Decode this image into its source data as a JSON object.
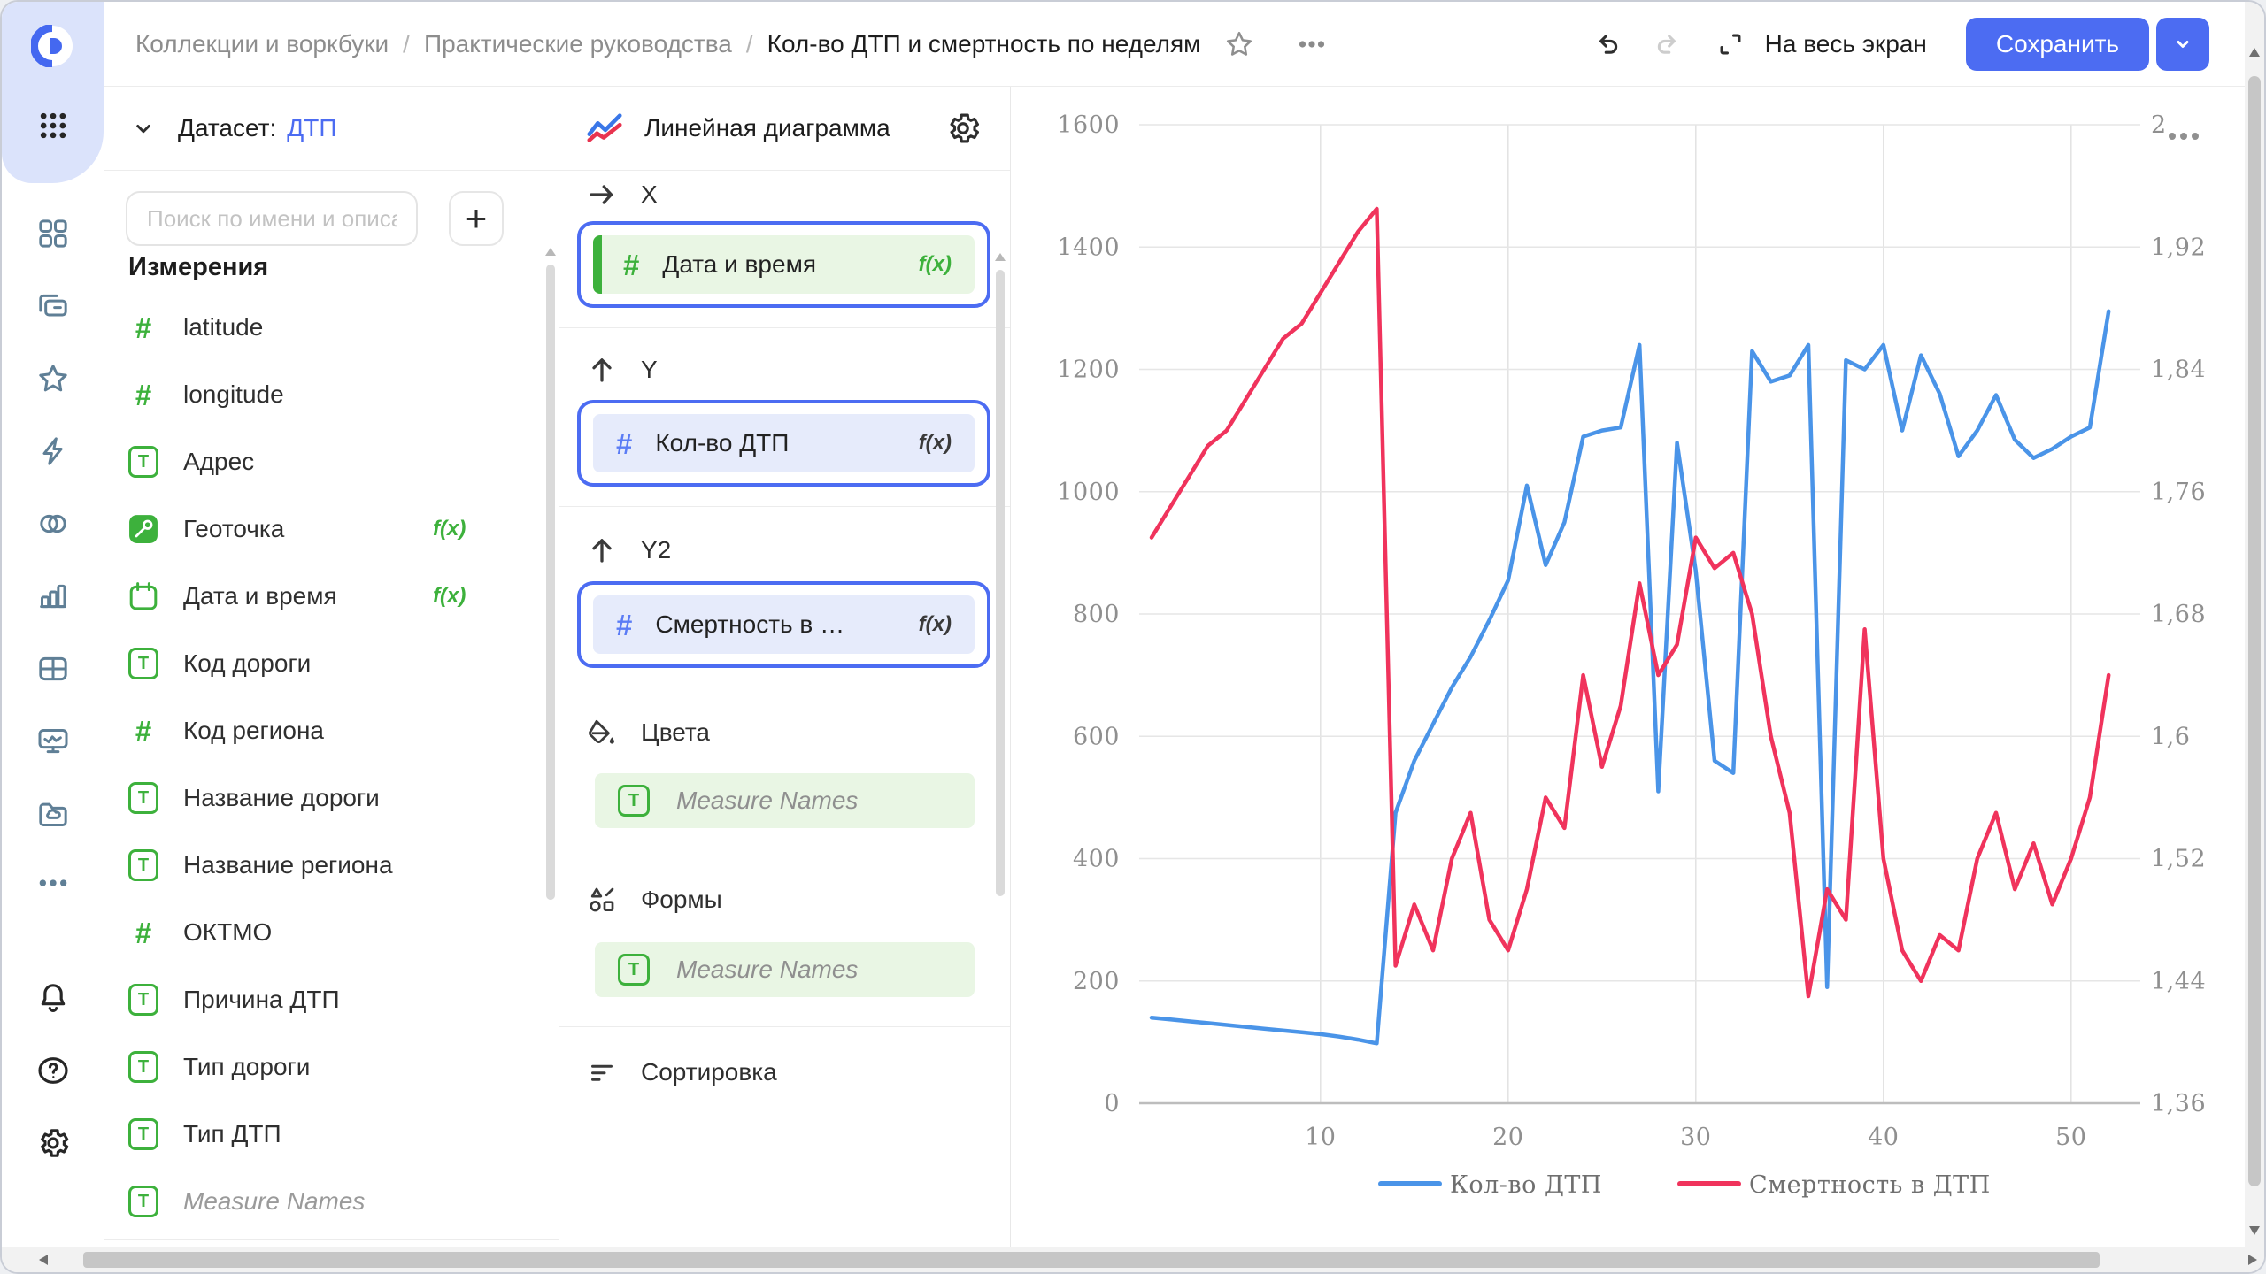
{
  "labels": {
    "fx": "f(x)",
    "plus": "+"
  },
  "colors": {
    "accent": "#4c6cf2",
    "green": "#3db13c",
    "light_green_chip": "#e9f6e4",
    "lavender_chip": "#e6ebfb",
    "rail_icon": "#5f7f96",
    "series_blue": "#4a94e8",
    "series_red": "#f0335c"
  },
  "topbar": {
    "breadcrumbs": [
      {
        "label": "Коллекции и воркбуки"
      },
      {
        "label": "Практические руководства"
      },
      {
        "label": "Кол-во ДТП и смертность по неделям",
        "current": true
      }
    ],
    "fullscreen_label": "На весь экран",
    "save_label": "Сохранить"
  },
  "dataset_panel": {
    "header_label": "Датасет:",
    "dataset_name": "ДТП",
    "search_placeholder": "Поиск по имени и описанию",
    "section_title": "Измерения",
    "fields": [
      {
        "type": "number",
        "label": "latitude"
      },
      {
        "type": "number",
        "label": "longitude"
      },
      {
        "type": "text",
        "label": "Адрес"
      },
      {
        "type": "geo",
        "label": "Геоточка",
        "fx": true
      },
      {
        "type": "calendar",
        "label": "Дата и время",
        "fx": true
      },
      {
        "type": "text",
        "label": "Код дороги"
      },
      {
        "type": "number",
        "label": "Код региона"
      },
      {
        "type": "text",
        "label": "Название дороги"
      },
      {
        "type": "text",
        "label": "Название региона"
      },
      {
        "type": "number",
        "label": "ОКТМО"
      },
      {
        "type": "text",
        "label": "Причина ДТП"
      },
      {
        "type": "text",
        "label": "Тип дороги"
      },
      {
        "type": "text",
        "label": "Тип ДТП"
      },
      {
        "type": "text",
        "label": "Measure Names",
        "italic": true
      }
    ]
  },
  "config_panel": {
    "title": "Линейная диаграмма",
    "sections": {
      "x": {
        "label": "X",
        "field": {
          "label": "Дата и время"
        }
      },
      "y": {
        "label": "Y",
        "field": {
          "label": "Кол-во ДТП"
        }
      },
      "y2": {
        "label": "Y2",
        "field": {
          "label": "Смертность в ДТП"
        }
      },
      "colors": {
        "label": "Цвета",
        "field": {
          "label": "Measure Names"
        }
      },
      "shapes": {
        "label": "Формы",
        "field": {
          "label": "Measure Names"
        }
      },
      "sort": {
        "label": "Сортировка"
      }
    }
  },
  "chart_data": {
    "type": "line",
    "title": "Кол-во ДТП и смертность по неделям",
    "xlabel": "",
    "x_range": [
      1,
      52
    ],
    "x_ticks": [
      10,
      20,
      30,
      40,
      50
    ],
    "grid": true,
    "legend_position": "bottom",
    "left_axis": {
      "min": 0,
      "max": 1600,
      "ticks": [
        "1600",
        "1400",
        "1200",
        "1000",
        "800",
        "600",
        "400",
        "200",
        "0"
      ]
    },
    "right_axis": {
      "min": 1.36,
      "max": 2,
      "ticks": [
        "2",
        "1,92",
        "1,84",
        "1,76",
        "1,68",
        "1,6",
        "1,52",
        "1,44",
        "1,36"
      ]
    },
    "series": [
      {
        "name": "Кол-во ДТП",
        "axis": "left",
        "color": "#4a94e8",
        "values": [
          140,
          137,
          134,
          131,
          128,
          125,
          122,
          119,
          116,
          113,
          109,
          104,
          98,
          475,
          560,
          620,
          680,
          730,
          790,
          855,
          1010,
          880,
          950,
          1090,
          1100,
          1105,
          1240,
          510,
          1080,
          870,
          560,
          540,
          1230,
          1180,
          1190,
          1240,
          190,
          1215,
          1200,
          1240,
          1100,
          1223,
          1160,
          1058,
          1100,
          1158,
          1085,
          1055,
          1070,
          1090,
          1105,
          1295
        ]
      },
      {
        "name": "Смертность в ДТП",
        "axis": "right",
        "color": "#f0335c",
        "values": [
          1.73,
          1.75,
          1.77,
          1.79,
          1.8,
          1.82,
          1.84,
          1.86,
          1.87,
          1.89,
          1.91,
          1.93,
          1.945,
          1.45,
          1.49,
          1.46,
          1.52,
          1.55,
          1.48,
          1.46,
          1.5,
          1.56,
          1.54,
          1.64,
          1.58,
          1.62,
          1.7,
          1.64,
          1.66,
          1.73,
          1.71,
          1.72,
          1.68,
          1.6,
          1.55,
          1.43,
          1.5,
          1.48,
          1.67,
          1.52,
          1.46,
          1.44,
          1.47,
          1.46,
          1.52,
          1.55,
          1.5,
          1.53,
          1.49,
          1.52,
          1.56,
          1.64
        ]
      }
    ]
  }
}
